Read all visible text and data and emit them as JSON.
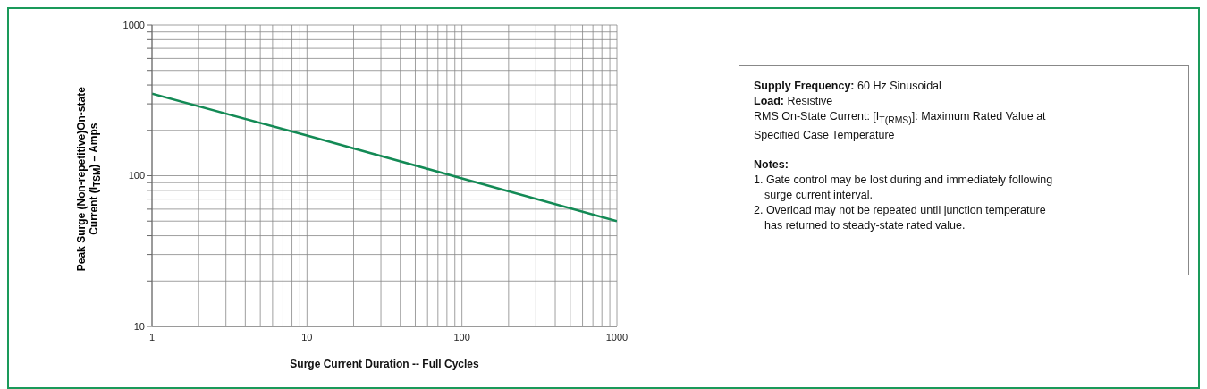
{
  "chart_data": {
    "type": "line",
    "xlabel": "Surge Current Duration -- Full Cycles",
    "ylabel": "Peak Surge (Non-repetitive)On-state Current (I$_{TSM}$) – Amps",
    "log": "xy",
    "grid": true,
    "marker": "none",
    "line_style": "solid",
    "xlim": [
      1,
      1000
    ],
    "ylim": [
      10,
      1000
    ],
    "xticks": [
      1,
      {
        "value": 2,
        "label": null
      },
      {
        "value": 3,
        "label": null
      },
      {
        "value": 4,
        "label": null
      },
      {
        "value": 5,
        "label": null
      },
      {
        "value": 6,
        "label": null
      },
      {
        "value": 7,
        "label": null
      },
      {
        "value": 8,
        "label": null
      },
      {
        "value": 9,
        "label": null
      },
      10,
      {
        "value": 20,
        "label": null
      },
      {
        "value": 30,
        "label": null
      },
      {
        "value": 40,
        "label": null
      },
      {
        "value": 50,
        "label": null
      },
      {
        "value": 60,
        "label": null
      },
      {
        "value": 70,
        "label": null
      },
      {
        "value": 80,
        "label": null
      },
      {
        "value": 90,
        "label": null
      },
      100,
      {
        "value": 200,
        "label": null
      },
      {
        "value": 300,
        "label": null
      },
      {
        "value": 400,
        "label": null
      },
      {
        "value": 500,
        "label": null
      },
      {
        "value": 600,
        "label": null
      },
      {
        "value": 700,
        "label": null
      },
      {
        "value": 800,
        "label": null
      },
      {
        "value": 900,
        "label": null
      },
      1000
    ],
    "yticks": [
      10,
      {
        "value": 20,
        "label": null
      },
      {
        "value": 30,
        "label": null
      },
      {
        "value": 40,
        "label": null
      },
      {
        "value": 50,
        "label": null
      },
      {
        "value": 60,
        "label": null
      },
      {
        "value": 70,
        "label": null
      },
      {
        "value": 80,
        "label": null
      },
      {
        "value": 90,
        "label": null
      },
      100,
      {
        "value": 200,
        "label": null
      },
      {
        "value": 300,
        "label": null
      },
      {
        "value": 400,
        "label": null
      },
      {
        "value": 500,
        "label": null
      },
      {
        "value": 600,
        "label": null
      },
      {
        "value": 700,
        "label": null
      },
      {
        "value": 800,
        "label": null
      },
      {
        "value": 900,
        "label": null
      },
      1000
    ],
    "x": [
      1,
      10,
      100,
      1000
    ],
    "series": [
      {
        "color": "#138a55",
        "values": [
          350,
          185,
          96,
          50
        ]
      }
    ],
    "annotations": [
      "Supply Frequency: 60 Hz Sinusoidal",
      "Load: Resistive",
      "RMS On-State Current: [I$_{T(RMS)}$]: Maximum Rated Value at Specified Case Temperature",
      "Notes:",
      "1. Gate control may be lost during and immediately following surge current interval.",
      "2. Overload may not be repeated until junction temperature has returned to steady-state rated value."
    ]
  }
}
